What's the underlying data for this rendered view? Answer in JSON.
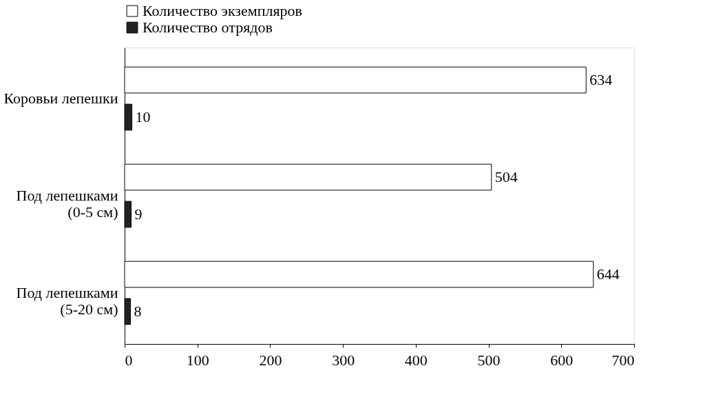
{
  "chart_data": {
    "type": "bar",
    "orientation": "horizontal",
    "categories": [
      "Коровьи лепешки",
      "Под лепешками\n(0-5 см)",
      "Под лепешками\n(5-20 см)"
    ],
    "series": [
      {
        "name": "Количество экземпляров",
        "color": "#ffffff",
        "values": [
          634,
          504,
          644
        ]
      },
      {
        "name": "Количество отрядов",
        "color": "#222222",
        "values": [
          10,
          9,
          8
        ]
      }
    ],
    "xlim": [
      0,
      700
    ],
    "xticks": [
      0,
      100,
      200,
      300,
      400,
      500,
      600,
      700
    ],
    "data_labels": true,
    "grid": false,
    "legend": "top"
  }
}
